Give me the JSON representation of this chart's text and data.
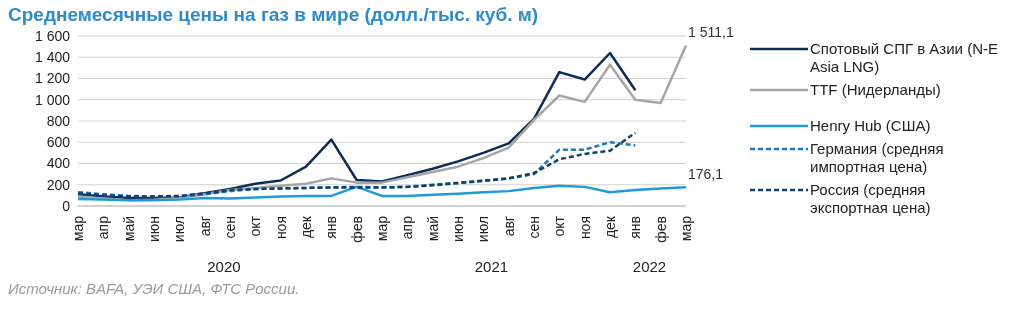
{
  "chart_data": {
    "type": "line",
    "title": "Среднемесячные цены на газ в мире (долл./тыс. куб. м)",
    "categories": [
      "мар",
      "апр",
      "май",
      "июн",
      "июл",
      "авг",
      "сен",
      "окт",
      "ноя",
      "дек",
      "янв",
      "фев",
      "мар",
      "апр",
      "май",
      "июн",
      "июл",
      "авг",
      "сен",
      "окт",
      "ноя",
      "дек",
      "янв",
      "фев",
      "мар"
    ],
    "series": [
      {
        "name": "Спотовый СПГ в Азии (N-E Asia LNG)",
        "color": "#0e2c55",
        "line_style": "solid",
        "values": [
          110,
          90,
          75,
          75,
          80,
          120,
          160,
          210,
          240,
          370,
          625,
          245,
          230,
          290,
          350,
          420,
          500,
          590,
          820,
          1260,
          1190,
          1440,
          1090,
          null,
          null
        ]
      },
      {
        "name": "TTF (Нидерланды)",
        "color": "#a6a6a6",
        "line_style": "solid",
        "values": [
          90,
          70,
          55,
          60,
          75,
          110,
          150,
          170,
          190,
          210,
          260,
          220,
          220,
          270,
          320,
          370,
          450,
          550,
          810,
          1040,
          980,
          1330,
          1000,
          970,
          1511.1
        ],
        "value_labels": [
          null,
          null,
          null,
          null,
          null,
          null,
          null,
          null,
          null,
          null,
          null,
          null,
          null,
          null,
          null,
          null,
          null,
          null,
          null,
          null,
          null,
          null,
          null,
          null,
          "1 511,1"
        ]
      },
      {
        "name": "Henry Hub (США)",
        "color": "#1f9ad6",
        "line_style": "solid",
        "values": [
          65,
          60,
          55,
          55,
          60,
          75,
          70,
          80,
          90,
          95,
          95,
          180,
          95,
          95,
          105,
          115,
          130,
          140,
          170,
          190,
          180,
          130,
          150,
          165,
          176.1
        ],
        "value_labels": [
          null,
          null,
          null,
          null,
          null,
          null,
          null,
          null,
          null,
          null,
          null,
          null,
          null,
          null,
          null,
          null,
          null,
          null,
          null,
          null,
          null,
          null,
          null,
          null,
          "176,1"
        ]
      },
      {
        "name": "Германия (средняя импортная цена)",
        "color": "#1b78b8",
        "line_style": "dashed",
        "values": [
          130,
          110,
          95,
          90,
          90,
          110,
          140,
          160,
          165,
          170,
          175,
          180,
          175,
          180,
          200,
          220,
          240,
          260,
          300,
          530,
          530,
          600,
          570,
          null,
          null
        ]
      },
      {
        "name": "Россия (средняя экспортная цена)",
        "color": "#133f6e",
        "line_style": "dashed",
        "values": [
          120,
          100,
          90,
          90,
          95,
          120,
          150,
          160,
          165,
          170,
          175,
          175,
          175,
          180,
          195,
          215,
          235,
          260,
          310,
          440,
          490,
          520,
          690,
          null,
          null
        ]
      }
    ],
    "ylim": [
      0,
      1600
    ],
    "yticks": [
      0,
      200,
      400,
      600,
      800,
      {
        "value": 1000,
        "label": "1 000"
      },
      {
        "value": 1200,
        "label": "1 200"
      },
      {
        "value": 1400,
        "label": "1 400"
      },
      {
        "value": 1600,
        "label": "1 600"
      }
    ],
    "grid": "y",
    "legend": "right",
    "marker": "none",
    "annotations": [
      "2020",
      "2021",
      "2022",
      "Источник: BAFA, УЭИ США, ФТС России."
    ]
  }
}
